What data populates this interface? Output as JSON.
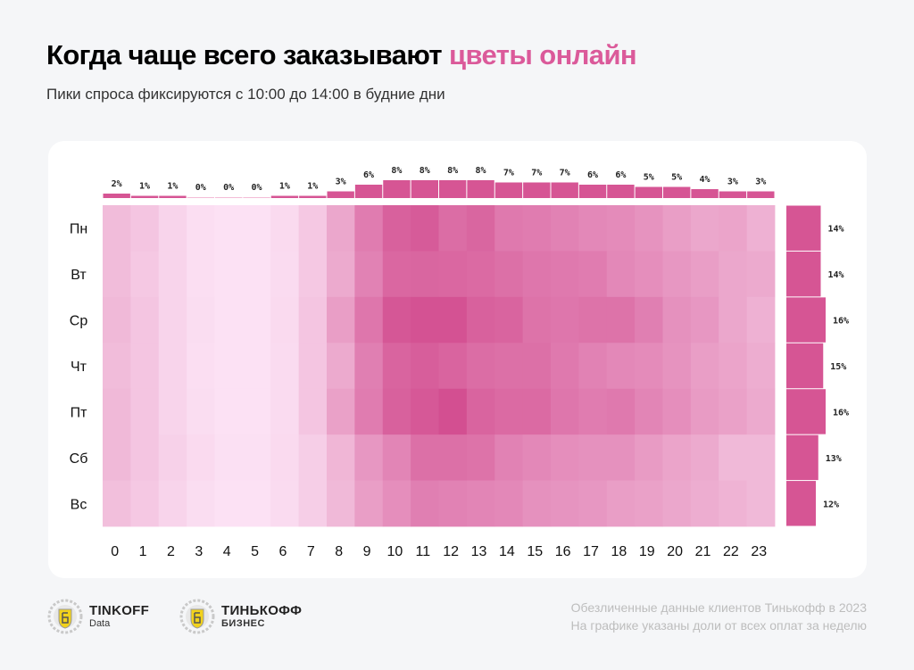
{
  "header": {
    "title_main": "Когда чаще всего заказывают",
    "title_accent": "цветы онлайн",
    "subtitle": "Пики спроса фиксируются с 10:00 до 14:00 в будние дни"
  },
  "colors": {
    "accent": "#db5a9a",
    "bar": "#d65594",
    "heat_low": "#fde6f7",
    "heat_high": "#d34f91"
  },
  "chart_data": {
    "type": "heatmap",
    "title": "Когда чаще всего заказывают цветы онлайн",
    "xlabel": "",
    "ylabel": "",
    "x": [
      "0",
      "1",
      "2",
      "3",
      "4",
      "5",
      "6",
      "7",
      "8",
      "9",
      "10",
      "11",
      "12",
      "13",
      "14",
      "15",
      "16",
      "17",
      "18",
      "19",
      "20",
      "21",
      "22",
      "23"
    ],
    "y": [
      "Пн",
      "Вт",
      "Ср",
      "Чт",
      "Пт",
      "Сб",
      "Вс"
    ],
    "values": [
      [
        0.28,
        0.22,
        0.12,
        0.05,
        0.03,
        0.03,
        0.08,
        0.2,
        0.42,
        0.7,
        0.88,
        0.92,
        0.8,
        0.85,
        0.72,
        0.7,
        0.66,
        0.62,
        0.6,
        0.55,
        0.48,
        0.42,
        0.44,
        0.35
      ],
      [
        0.28,
        0.2,
        0.12,
        0.05,
        0.03,
        0.03,
        0.07,
        0.2,
        0.4,
        0.66,
        0.84,
        0.85,
        0.84,
        0.82,
        0.78,
        0.74,
        0.72,
        0.7,
        0.62,
        0.58,
        0.52,
        0.48,
        0.42,
        0.4
      ],
      [
        0.3,
        0.22,
        0.12,
        0.06,
        0.03,
        0.03,
        0.08,
        0.22,
        0.48,
        0.74,
        0.95,
        0.98,
        0.98,
        0.88,
        0.86,
        0.76,
        0.74,
        0.76,
        0.76,
        0.68,
        0.56,
        0.52,
        0.42,
        0.35
      ],
      [
        0.28,
        0.22,
        0.12,
        0.05,
        0.03,
        0.03,
        0.07,
        0.22,
        0.4,
        0.68,
        0.86,
        0.9,
        0.86,
        0.8,
        0.78,
        0.78,
        0.72,
        0.66,
        0.62,
        0.6,
        0.55,
        0.48,
        0.44,
        0.38
      ],
      [
        0.3,
        0.22,
        0.12,
        0.06,
        0.03,
        0.03,
        0.07,
        0.22,
        0.46,
        0.7,
        0.88,
        0.94,
        1.0,
        0.86,
        0.82,
        0.82,
        0.74,
        0.7,
        0.72,
        0.64,
        0.58,
        0.5,
        0.46,
        0.4
      ],
      [
        0.3,
        0.22,
        0.14,
        0.08,
        0.04,
        0.04,
        0.08,
        0.16,
        0.32,
        0.52,
        0.64,
        0.78,
        0.78,
        0.76,
        0.66,
        0.62,
        0.58,
        0.56,
        0.56,
        0.5,
        0.44,
        0.4,
        0.3,
        0.3
      ],
      [
        0.26,
        0.2,
        0.12,
        0.06,
        0.03,
        0.03,
        0.07,
        0.16,
        0.3,
        0.48,
        0.58,
        0.68,
        0.66,
        0.64,
        0.62,
        0.56,
        0.54,
        0.52,
        0.48,
        0.46,
        0.42,
        0.38,
        0.34,
        0.3
      ]
    ],
    "hourly_share": {
      "labels": [
        "2%",
        "1%",
        "1%",
        "0%",
        "0%",
        "0%",
        "1%",
        "1%",
        "3%",
        "6%",
        "8%",
        "8%",
        "8%",
        "8%",
        "7%",
        "7%",
        "7%",
        "6%",
        "6%",
        "5%",
        "5%",
        "4%",
        "3%",
        "3%"
      ],
      "values": [
        2,
        1,
        1,
        0,
        0,
        0,
        1,
        1,
        3,
        6,
        8,
        8,
        8,
        8,
        7,
        7,
        7,
        6,
        6,
        5,
        5,
        4,
        3,
        3
      ]
    },
    "daily_share": {
      "labels": [
        "14%",
        "14%",
        "16%",
        "15%",
        "16%",
        "13%",
        "12%"
      ],
      "values": [
        14,
        14,
        16,
        15,
        16,
        13,
        12
      ]
    }
  },
  "footer": {
    "logo1_name": "TINKOFF",
    "logo1_sub": "Data",
    "logo2_name": "ТИНЬКОФФ",
    "logo2_sub": "БИЗНЕС",
    "note_line1": "Обезличенные данные клиентов Тинькофф в 2023",
    "note_line2": "На графике указаны доли от всех оплат за неделю"
  }
}
